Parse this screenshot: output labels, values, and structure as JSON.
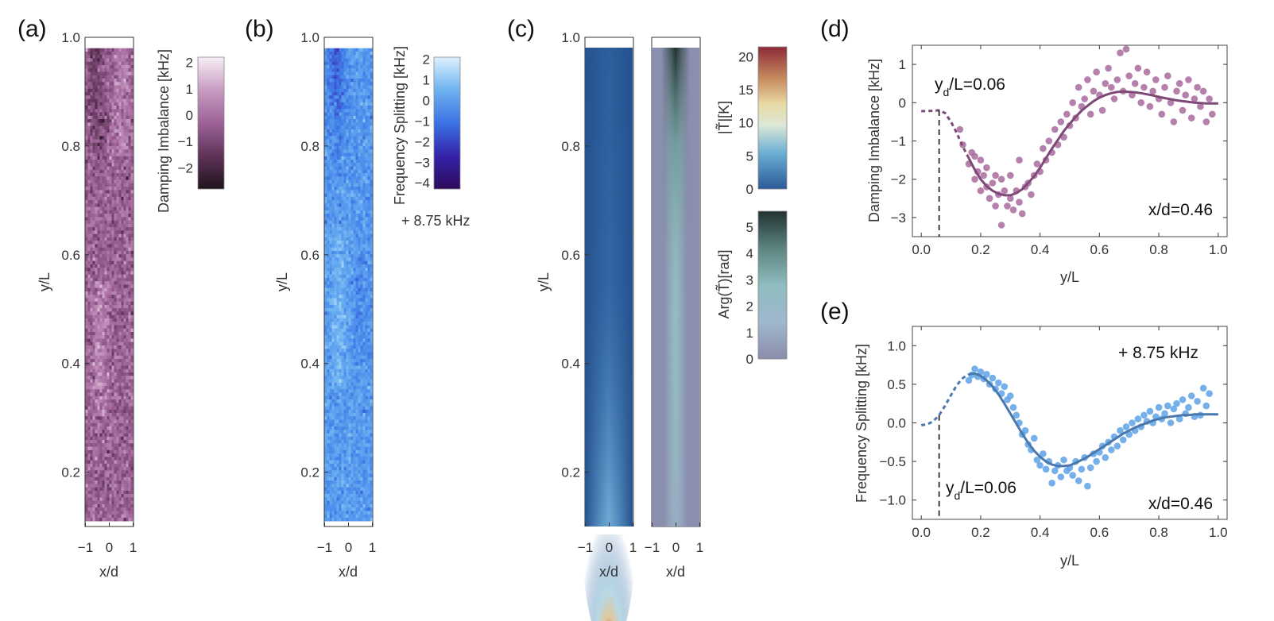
{
  "figure": {
    "panels": {
      "a": {
        "label": "(a)"
      },
      "b": {
        "label": "(b)"
      },
      "c": {
        "label": "(c)"
      },
      "d": {
        "label": "(d)"
      },
      "e": {
        "label": "(e)"
      }
    }
  },
  "colors": {
    "purple_marker": "#a86a9c",
    "purple_line": "#7d4a78",
    "blue_marker": "#5ea2e6",
    "blue_line": "#4a78ad",
    "axis": "#333333"
  },
  "chart_data": [
    {
      "id": "a",
      "type": "heatmap",
      "xlabel": "x/d",
      "ylabel": "y/L",
      "xlim": [
        -1,
        1
      ],
      "ylim": [
        0.1,
        1.0
      ],
      "data_ylim": [
        0.11,
        0.98
      ],
      "xticks": [
        -1,
        0,
        1
      ],
      "yticks": [
        0.2,
        0.4,
        0.6,
        0.8,
        1.0
      ],
      "colorbar": {
        "label": "Damping Imbalance [kHz]",
        "ticks": [
          2,
          1,
          0,
          -1,
          -2
        ],
        "range": [
          -2.8,
          2.2
        ],
        "colors": [
          "#2a1a26",
          "#6a3a62",
          "#a0659a",
          "#c89ac2",
          "#f5eaf3"
        ]
      },
      "description_values": {
        "mean": -0.3,
        "spread": 0.9
      }
    },
    {
      "id": "b",
      "type": "heatmap",
      "xlabel": "x/d",
      "ylabel": "y/L",
      "xlim": [
        -1,
        1
      ],
      "ylim": [
        0.1,
        1.0
      ],
      "data_ylim": [
        0.11,
        0.98
      ],
      "xticks": [
        -1,
        0,
        1
      ],
      "yticks": [
        0.2,
        0.4,
        0.6,
        0.8,
        1.0
      ],
      "colorbar": {
        "label": "Frequency Splitting [kHz]",
        "ticks": [
          2,
          1,
          0,
          -1,
          -2,
          -3,
          -4
        ],
        "range": [
          -4.3,
          2.1
        ],
        "colors": [
          "#3a0a6a",
          "#3a2ab8",
          "#3f7ee8",
          "#6fb4f2",
          "#d2ecfb"
        ]
      },
      "offset_note": "+ 8.75 kHz"
    },
    {
      "id": "c",
      "type": "heatmap",
      "xlabel": "x/d",
      "ylabel": "y/L",
      "xlim": [
        -1,
        1
      ],
      "ylim": [
        0.1,
        1.0
      ],
      "xticks": [
        -1,
        0,
        1
      ],
      "yticks": [
        0.2,
        0.4,
        0.6,
        0.8,
        1.0
      ],
      "colorbar_magnitude": {
        "label": "|T̃|[K]",
        "ticks": [
          20,
          15,
          10,
          5,
          0
        ],
        "range": [
          0,
          21.5
        ]
      },
      "colorbar_phase": {
        "label": "Arg(T̃)[rad]",
        "ticks": [
          5,
          4,
          3,
          2,
          1,
          0
        ],
        "range": [
          0,
          5.6
        ]
      }
    },
    {
      "id": "d",
      "type": "scatter",
      "xlabel": "y/L",
      "ylabel": "Damping Imbalance [kHz]",
      "xlim": [
        -0.03,
        1.03
      ],
      "ylim": [
        -3.5,
        1.5
      ],
      "xticks": [
        0.0,
        0.2,
        0.4,
        0.6,
        0.8,
        1.0
      ],
      "yticks": [
        1,
        0,
        -1,
        -2,
        -3
      ],
      "annotations": {
        "yd": "y",
        "yd_sub": "d",
        "yd_rest": "/L=0.06",
        "xd": "x/d=0.46"
      },
      "yd_value": 0.06,
      "fit": {
        "x": [
          0.0,
          0.02,
          0.04,
          0.06,
          0.08,
          0.1,
          0.12,
          0.14,
          0.16,
          0.18,
          0.2,
          0.22,
          0.24,
          0.26,
          0.28,
          0.3,
          0.32,
          0.34,
          0.36,
          0.38,
          0.4,
          0.42,
          0.44,
          0.46,
          0.48,
          0.5,
          0.52,
          0.54,
          0.56,
          0.58,
          0.6,
          0.62,
          0.64,
          0.66,
          0.68,
          0.7,
          0.72,
          0.74,
          0.76,
          0.78,
          0.8,
          0.82,
          0.84,
          0.86,
          0.88,
          0.9,
          0.92,
          0.94,
          0.96,
          0.98,
          1.0
        ],
        "y": [
          -0.22,
          -0.22,
          -0.21,
          -0.2,
          -0.27,
          -0.5,
          -0.8,
          -1.15,
          -1.45,
          -1.75,
          -2.0,
          -2.18,
          -2.3,
          -2.38,
          -2.42,
          -2.42,
          -2.36,
          -2.26,
          -2.1,
          -1.92,
          -1.7,
          -1.45,
          -1.2,
          -0.97,
          -0.74,
          -0.55,
          -0.37,
          -0.21,
          -0.08,
          0.04,
          0.13,
          0.2,
          0.25,
          0.28,
          0.29,
          0.28,
          0.27,
          0.25,
          0.22,
          0.19,
          0.15,
          0.12,
          0.09,
          0.06,
          0.04,
          0.02,
          0.0,
          -0.01,
          -0.02,
          -0.02,
          -0.02
        ],
        "dashed_until": 0.16
      },
      "points": {
        "x": [
          0.13,
          0.14,
          0.16,
          0.17,
          0.18,
          0.18,
          0.19,
          0.2,
          0.2,
          0.21,
          0.22,
          0.22,
          0.23,
          0.24,
          0.25,
          0.25,
          0.26,
          0.27,
          0.27,
          0.28,
          0.29,
          0.3,
          0.3,
          0.31,
          0.32,
          0.33,
          0.33,
          0.34,
          0.35,
          0.36,
          0.37,
          0.38,
          0.39,
          0.4,
          0.41,
          0.42,
          0.43,
          0.44,
          0.45,
          0.46,
          0.47,
          0.48,
          0.49,
          0.5,
          0.51,
          0.52,
          0.53,
          0.54,
          0.55,
          0.56,
          0.57,
          0.58,
          0.59,
          0.6,
          0.61,
          0.62,
          0.63,
          0.64,
          0.65,
          0.66,
          0.67,
          0.68,
          0.69,
          0.7,
          0.71,
          0.72,
          0.73,
          0.74,
          0.75,
          0.76,
          0.77,
          0.78,
          0.79,
          0.8,
          0.81,
          0.82,
          0.83,
          0.84,
          0.85,
          0.86,
          0.87,
          0.88,
          0.89,
          0.9,
          0.91,
          0.92,
          0.93,
          0.94,
          0.95,
          0.96,
          0.97,
          0.98
        ],
        "y": [
          -0.7,
          -1.1,
          -1.6,
          -1.3,
          -2.0,
          -1.4,
          -1.8,
          -2.3,
          -1.5,
          -1.9,
          -2.2,
          -1.7,
          -2.5,
          -2.1,
          -1.9,
          -2.7,
          -2.4,
          -2.0,
          -3.2,
          -2.3,
          -2.7,
          -1.9,
          -2.5,
          -2.8,
          -2.3,
          -2.6,
          -1.5,
          -2.9,
          -2.2,
          -2.1,
          -2.4,
          -1.9,
          -1.6,
          -1.8,
          -1.2,
          -1.5,
          -1.0,
          -1.3,
          -0.7,
          -1.1,
          -0.5,
          -0.9,
          -0.3,
          -0.6,
          0.0,
          -0.4,
          0.4,
          -0.1,
          0.1,
          0.6,
          -0.3,
          0.3,
          0.8,
          0.2,
          -0.2,
          0.5,
          0.9,
          0.4,
          0.1,
          0.6,
          1.3,
          0.3,
          1.4,
          0.7,
          0.2,
          0.5,
          0.9,
          0.0,
          0.4,
          0.8,
          -0.1,
          0.3,
          0.6,
          0.1,
          -0.3,
          0.4,
          0.7,
          0.0,
          -0.5,
          0.3,
          0.5,
          -0.2,
          0.2,
          0.6,
          -0.4,
          0.1,
          0.4,
          -0.1,
          0.3,
          -0.5,
          0.1,
          -0.3
        ]
      }
    },
    {
      "id": "e",
      "type": "scatter",
      "xlabel": "y/L",
      "ylabel": "Frequency Splitting [kHz]",
      "xlim": [
        -0.03,
        1.03
      ],
      "ylim": [
        -1.25,
        1.25
      ],
      "xticks": [
        0.0,
        0.2,
        0.4,
        0.6,
        0.8,
        1.0
      ],
      "yticks": [
        1.0,
        0.5,
        0.0,
        -0.5,
        -1.0
      ],
      "annotations": {
        "yd": "y",
        "yd_sub": "d",
        "yd_rest": "/L=0.06",
        "xd": "x/d=0.46",
        "offset": "+ 8.75 kHz"
      },
      "yd_value": 0.06,
      "fit": {
        "x": [
          0.0,
          0.02,
          0.04,
          0.06,
          0.08,
          0.1,
          0.12,
          0.14,
          0.16,
          0.18,
          0.2,
          0.22,
          0.24,
          0.26,
          0.28,
          0.3,
          0.32,
          0.34,
          0.36,
          0.38,
          0.4,
          0.42,
          0.44,
          0.46,
          0.48,
          0.5,
          0.52,
          0.54,
          0.56,
          0.58,
          0.6,
          0.62,
          0.64,
          0.66,
          0.68,
          0.7,
          0.72,
          0.74,
          0.76,
          0.78,
          0.8,
          0.82,
          0.84,
          0.86,
          0.88,
          0.9,
          0.92,
          0.94,
          0.96,
          0.98,
          1.0
        ],
        "y": [
          -0.03,
          -0.02,
          0.02,
          0.1,
          0.22,
          0.36,
          0.49,
          0.58,
          0.63,
          0.64,
          0.61,
          0.55,
          0.47,
          0.37,
          0.25,
          0.12,
          -0.01,
          -0.14,
          -0.26,
          -0.36,
          -0.44,
          -0.5,
          -0.54,
          -0.56,
          -0.56,
          -0.55,
          -0.52,
          -0.48,
          -0.44,
          -0.39,
          -0.34,
          -0.29,
          -0.24,
          -0.19,
          -0.14,
          -0.1,
          -0.06,
          -0.03,
          0.0,
          0.03,
          0.05,
          0.07,
          0.08,
          0.09,
          0.1,
          0.1,
          0.11,
          0.11,
          0.11,
          0.11,
          0.11
        ],
        "dashed_until": 0.16
      },
      "points": {
        "x": [
          0.16,
          0.17,
          0.18,
          0.19,
          0.2,
          0.21,
          0.22,
          0.23,
          0.24,
          0.25,
          0.26,
          0.27,
          0.28,
          0.29,
          0.3,
          0.31,
          0.32,
          0.33,
          0.34,
          0.35,
          0.36,
          0.37,
          0.38,
          0.39,
          0.4,
          0.41,
          0.42,
          0.43,
          0.44,
          0.45,
          0.46,
          0.47,
          0.48,
          0.49,
          0.5,
          0.51,
          0.52,
          0.53,
          0.54,
          0.55,
          0.56,
          0.57,
          0.58,
          0.59,
          0.6,
          0.61,
          0.62,
          0.63,
          0.64,
          0.65,
          0.66,
          0.67,
          0.68,
          0.69,
          0.7,
          0.71,
          0.72,
          0.73,
          0.74,
          0.75,
          0.76,
          0.77,
          0.78,
          0.79,
          0.8,
          0.81,
          0.82,
          0.83,
          0.84,
          0.85,
          0.86,
          0.87,
          0.88,
          0.89,
          0.9,
          0.91,
          0.92,
          0.93,
          0.94,
          0.95,
          0.96,
          0.97
        ],
        "y": [
          0.55,
          0.62,
          0.7,
          0.6,
          0.66,
          0.57,
          0.63,
          0.5,
          0.58,
          0.44,
          0.52,
          0.38,
          0.47,
          0.3,
          0.35,
          0.2,
          0.1,
          0.0,
          -0.15,
          -0.1,
          -0.28,
          -0.35,
          -0.2,
          -0.48,
          -0.55,
          -0.4,
          -0.6,
          -0.5,
          -0.78,
          -0.62,
          -0.55,
          -0.7,
          -0.48,
          -0.62,
          -0.58,
          -0.68,
          -0.5,
          -0.75,
          -0.6,
          -0.45,
          -0.82,
          -0.58,
          -0.4,
          -0.5,
          -0.38,
          -0.3,
          -0.45,
          -0.25,
          -0.35,
          -0.18,
          -0.3,
          -0.1,
          -0.22,
          -0.05,
          -0.15,
          0.0,
          -0.1,
          0.05,
          -0.05,
          0.1,
          0.02,
          0.15,
          0.0,
          0.08,
          0.2,
          0.05,
          0.12,
          0.22,
          0.0,
          0.18,
          0.25,
          0.05,
          0.3,
          0.12,
          0.2,
          0.35,
          0.08,
          0.28,
          0.1,
          0.45,
          0.22,
          0.38
        ]
      }
    }
  ]
}
